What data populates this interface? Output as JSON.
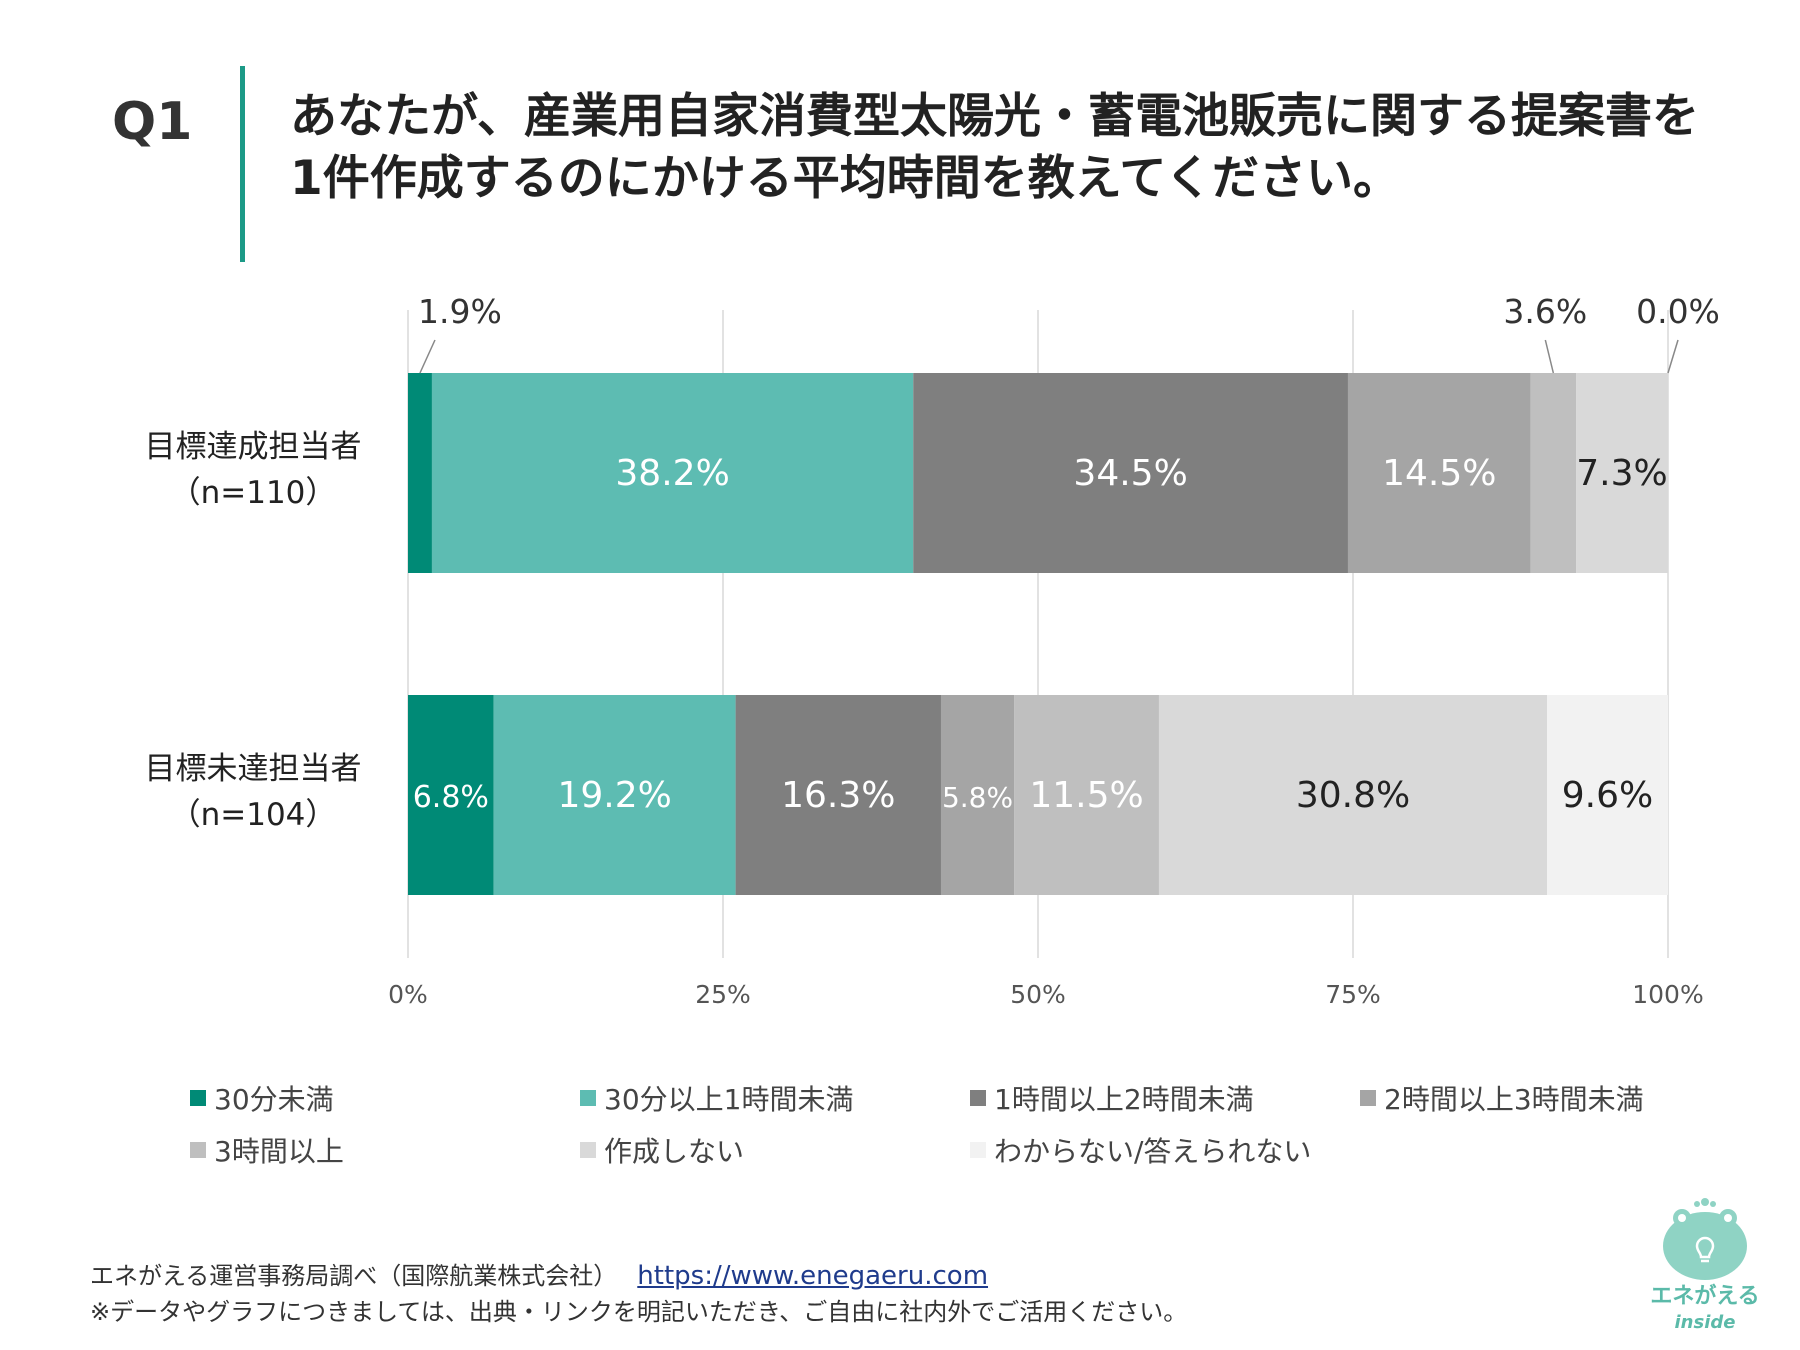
{
  "question": {
    "number": "Q1",
    "line1": "あなたが、産業用自家消費型太陽光・蓄電池販売に関する提案書を",
    "line2": "1件作成するのにかける平均時間を教えてください。"
  },
  "chart_data": {
    "type": "bar",
    "orientation": "horizontal",
    "stacked": true,
    "categories": [
      "目標達成担当者",
      "目標未達担当者"
    ],
    "category_n": [
      "（n=110）",
      "（n=104）"
    ],
    "series": [
      {
        "name": "30分未満",
        "color": "#008a76",
        "values": [
          1.9,
          6.8
        ],
        "labels": [
          "1.9%",
          "6.8%"
        ]
      },
      {
        "name": "30分以上1時間未満",
        "color": "#5dbcb2",
        "values": [
          38.2,
          19.2
        ],
        "labels": [
          "38.2%",
          "19.2%"
        ]
      },
      {
        "name": "1時間以上2時間未満",
        "color": "#7f7f7f",
        "values": [
          34.5,
          16.3
        ],
        "labels": [
          "34.5%",
          "16.3%"
        ]
      },
      {
        "name": "2時間以上3時間未満",
        "color": "#a5a5a5",
        "values": [
          14.5,
          5.8
        ],
        "labels": [
          "14.5%",
          "5.8%"
        ]
      },
      {
        "name": "3時間以上",
        "color": "#bfbfbf",
        "values": [
          3.6,
          11.5
        ],
        "labels": [
          "3.6%",
          "11.5%"
        ]
      },
      {
        "name": "作成しない",
        "color": "#d9d9d9",
        "values": [
          7.3,
          30.8
        ],
        "labels": [
          "7.3%",
          "30.8%"
        ]
      },
      {
        "name": "わからない/答えられない",
        "color": "#f2f2f2",
        "values": [
          0.0,
          9.6
        ],
        "labels": [
          "0.0%",
          "9.6%"
        ]
      }
    ],
    "xlim": [
      0,
      100
    ],
    "xticks": [
      "0%",
      "25%",
      "50%",
      "75%",
      "100%"
    ],
    "grid": true,
    "legend_position": "bottom"
  },
  "footer": {
    "source": "エネがえる運営事務局調べ（国際航業株式会社）",
    "url": "https://www.enegaeru.com",
    "note": "※データやグラフにつきましては、出典・リンクを明記いただき、ご自由に社内外でご活用ください。"
  },
  "logo": {
    "line1": "エネがえる",
    "line2": "inside"
  }
}
